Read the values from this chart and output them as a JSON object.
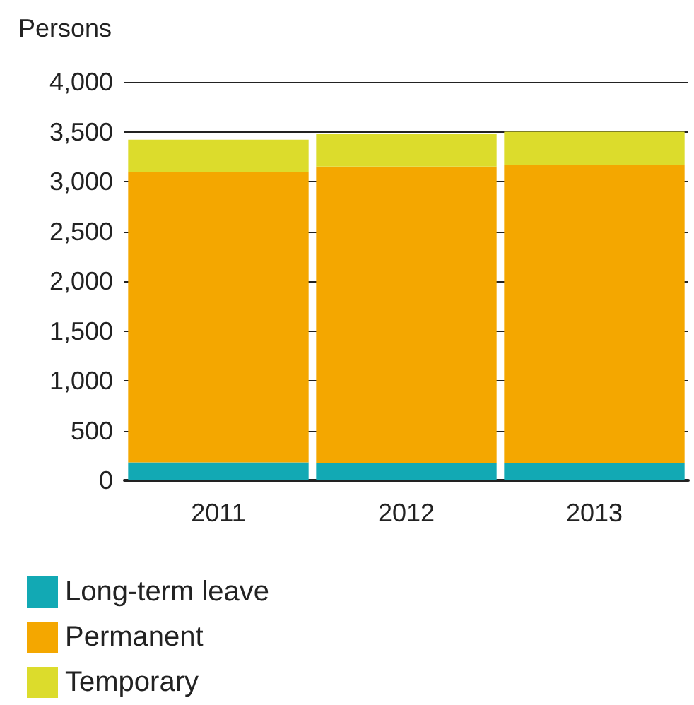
{
  "chart_data": {
    "type": "bar",
    "ylabel": "Persons",
    "categories": [
      "2011",
      "2012",
      "2013"
    ],
    "stacked": true,
    "series": [
      {
        "name": "Long-term leave",
        "color": "#12a9b4",
        "values": [
          180,
          170,
          170
        ]
      },
      {
        "name": "Permanent",
        "color": "#f4a700",
        "values": [
          2920,
          2980,
          2995
        ]
      },
      {
        "name": "Temporary",
        "color": "#dcdc2c",
        "values": [
          320,
          325,
          335
        ]
      }
    ],
    "ylim": [
      0,
      4000
    ],
    "yticks": [
      {
        "value": 0,
        "label": "0"
      },
      {
        "value": 500,
        "label": "500"
      },
      {
        "value": 1000,
        "label": "1,000"
      },
      {
        "value": 1500,
        "label": "1,500"
      },
      {
        "value": 2000,
        "label": "2,000"
      },
      {
        "value": 2500,
        "label": "2,500"
      },
      {
        "value": 3000,
        "label": "3,000"
      },
      {
        "value": 3500,
        "label": "3,500"
      },
      {
        "value": 4000,
        "label": "4,000"
      }
    ],
    "grid": "y",
    "legend": "bottom"
  }
}
